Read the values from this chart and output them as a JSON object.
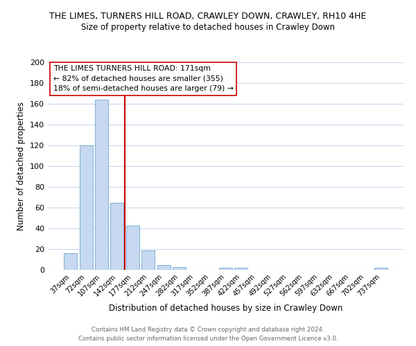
{
  "title": "THE LIMES, TURNERS HILL ROAD, CRAWLEY DOWN, CRAWLEY, RH10 4HE",
  "subtitle": "Size of property relative to detached houses in Crawley Down",
  "xlabel": "Distribution of detached houses by size in Crawley Down",
  "ylabel": "Number of detached properties",
  "bar_labels": [
    "37sqm",
    "72sqm",
    "107sqm",
    "142sqm",
    "177sqm",
    "212sqm",
    "247sqm",
    "282sqm",
    "317sqm",
    "352sqm",
    "387sqm",
    "422sqm",
    "457sqm",
    "492sqm",
    "527sqm",
    "562sqm",
    "597sqm",
    "632sqm",
    "667sqm",
    "702sqm",
    "737sqm"
  ],
  "bar_values": [
    16,
    120,
    164,
    65,
    43,
    19,
    5,
    3,
    0,
    0,
    2,
    2,
    0,
    0,
    0,
    0,
    0,
    0,
    0,
    0,
    2
  ],
  "bar_color": "#c6d9f0",
  "bar_edge_color": "#7bafd4",
  "reference_line_color": "#cc0000",
  "ylim": [
    0,
    200
  ],
  "yticks": [
    0,
    20,
    40,
    60,
    80,
    100,
    120,
    140,
    160,
    180,
    200
  ],
  "annotation_title": "THE LIMES TURNERS HILL ROAD: 171sqm",
  "annotation_line1": "← 82% of detached houses are smaller (355)",
  "annotation_line2": "18% of semi-detached houses are larger (79) →",
  "footer_line1": "Contains HM Land Registry data © Crown copyright and database right 2024.",
  "footer_line2": "Contains public sector information licensed under the Open Government Licence v3.0.",
  "background_color": "#ffffff",
  "grid_color": "#c8d8ec"
}
